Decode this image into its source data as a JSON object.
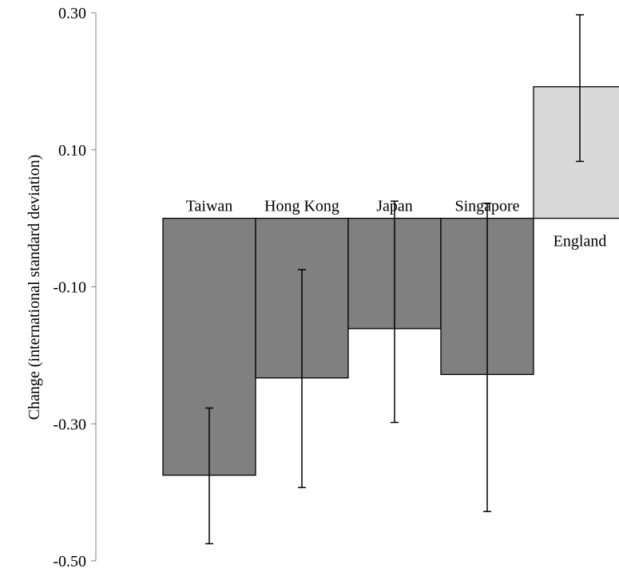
{
  "chart_data": {
    "type": "bar",
    "title": "",
    "xlabel": "",
    "ylabel": "Change (international standard deviation)",
    "ylim": [
      -0.5,
      0.3
    ],
    "yticks": [
      {
        "value": 0.3,
        "label": "0.30"
      },
      {
        "value": 0.1,
        "label": "0.10"
      },
      {
        "value": -0.1,
        "label": "-0.10"
      },
      {
        "value": -0.3,
        "label": "-0.30"
      },
      {
        "value": -0.5,
        "label": "-0.50"
      }
    ],
    "grid": false,
    "categories": [
      "Taiwan",
      "Hong Kong",
      "Japan",
      "Singapore",
      "England"
    ],
    "values": [
      -0.375,
      -0.233,
      -0.161,
      -0.228,
      0.192
    ],
    "error_low": [
      -0.475,
      -0.393,
      -0.298,
      -0.428,
      0.083
    ],
    "error_high": [
      -0.277,
      -0.075,
      0.025,
      0.022,
      0.297
    ],
    "colors": [
      "#808080",
      "#808080",
      "#808080",
      "#808080",
      "#d9d9d9"
    ]
  }
}
